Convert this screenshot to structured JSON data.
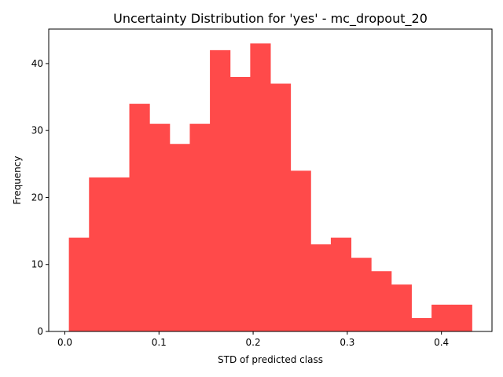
{
  "chart_data": {
    "type": "bar",
    "title": "Uncertainty Distribution for 'yes' - mc_dropout_20",
    "xlabel": "STD of predicted class",
    "ylabel": "Frequency",
    "bar_color": "#ff4a4a",
    "bin_edges": [
      0.0043,
      0.0257,
      0.0471,
      0.0685,
      0.0899,
      0.1113,
      0.1327,
      0.1541,
      0.1755,
      0.1969,
      0.2183,
      0.2397,
      0.2611,
      0.2825,
      0.3039,
      0.3253,
      0.3467,
      0.3681,
      0.3895,
      0.4109,
      0.4323
    ],
    "values": [
      14,
      23,
      23,
      34,
      31,
      28,
      31,
      42,
      38,
      43,
      37,
      24,
      13,
      14,
      11,
      9,
      7,
      2,
      4,
      4
    ],
    "xlim": [
      -0.0171,
      0.4537
    ],
    "ylim": [
      0,
      45.15
    ],
    "x_ticks": [
      0.0,
      0.1,
      0.2,
      0.3,
      0.4
    ],
    "x_tick_labels": [
      "0.0",
      "0.1",
      "0.2",
      "0.3",
      "0.4"
    ],
    "y_ticks": [
      0,
      10,
      20,
      30,
      40
    ],
    "y_tick_labels": [
      "0",
      "10",
      "20",
      "30",
      "40"
    ],
    "grid": false,
    "legend": "none"
  }
}
